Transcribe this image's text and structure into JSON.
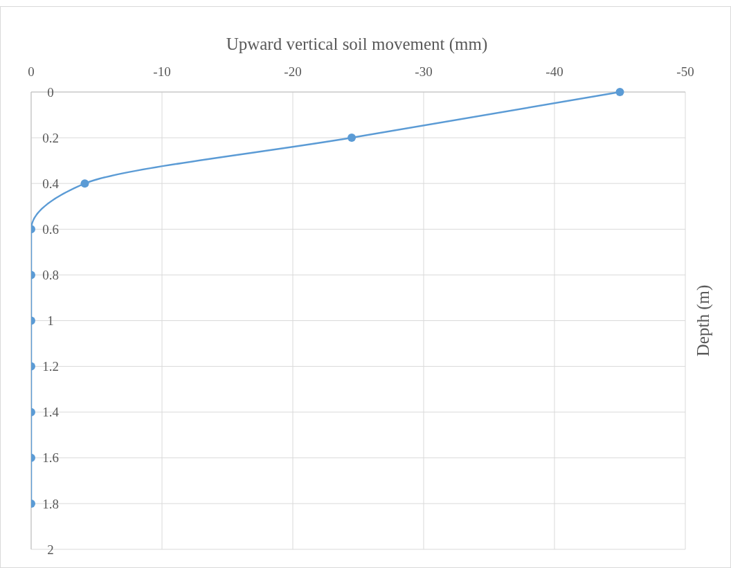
{
  "chart_data": {
    "type": "line",
    "xlabel": "Upward vertical soil movement (mm)",
    "ylabel": "Depth (m)",
    "x": [
      -45,
      -24.5,
      -4.1,
      0,
      0,
      0,
      0,
      0,
      0,
      0
    ],
    "series": [
      {
        "color": "#5b9bd5",
        "values": [
          0,
          0.2,
          0.4,
          0.6,
          0.8,
          1,
          1.2,
          1.4,
          1.6,
          1.8
        ]
      }
    ],
    "xlim": [
      0,
      -50
    ],
    "xticks": [
      0,
      -10,
      -20,
      -30,
      -40,
      -50
    ],
    "ylim": [
      2,
      0
    ],
    "yticks": [
      0,
      0.2,
      0.4,
      0.6,
      0.8,
      1,
      1.2,
      1.4,
      1.6,
      1.8,
      2
    ],
    "grid": true,
    "marker": "circle",
    "line_style": "solid"
  }
}
